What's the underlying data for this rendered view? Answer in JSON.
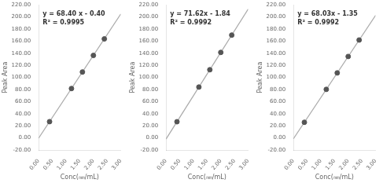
{
  "chart_data": [
    {
      "type": "scatter",
      "xlabel": "Conc(㎜/mL)",
      "ylabel": "Peak Area",
      "annotations": [
        "y = 68.40 x - 0.40",
        "R² = 0.9995"
      ],
      "series": [
        {
          "type": "scatter",
          "x": [
            0.4,
            1.2,
            1.6,
            2.0,
            2.4
          ],
          "values": [
            26.96,
            81.68,
            109.04,
            136.4,
            163.76
          ],
          "color": "#555555",
          "marker": "o"
        },
        {
          "type": "line",
          "x": [
            0.0,
            3.0
          ],
          "values": [
            -0.4,
            204.8
          ],
          "color": "#aaaaaa"
        }
      ],
      "xlim": [
        0,
        3
      ],
      "ylim": [
        -20,
        220
      ],
      "xticks": [
        {
          "value": 0,
          "label": "0.00"
        },
        {
          "value": 0.5,
          "label": "0.50"
        },
        {
          "value": 1,
          "label": "1.00"
        },
        {
          "value": 1.5,
          "label": "1.50"
        },
        {
          "value": 2,
          "label": "2.00"
        },
        {
          "value": 2.5,
          "label": "2.50"
        },
        {
          "value": 3,
          "label": "3.00"
        }
      ],
      "yticks": [
        {
          "value": -20,
          "label": "-20.00"
        },
        {
          "value": 0,
          "label": "0.00"
        },
        {
          "value": 20,
          "label": "20.00"
        },
        {
          "value": 40,
          "label": "40.00"
        },
        {
          "value": 60,
          "label": "60.00"
        },
        {
          "value": 80,
          "label": "80.00"
        },
        {
          "value": 100,
          "label": "100.00"
        },
        {
          "value": 120,
          "label": "120.00"
        },
        {
          "value": 140,
          "label": "140.00"
        },
        {
          "value": 160,
          "label": "160.00"
        },
        {
          "value": 180,
          "label": "180.00"
        },
        {
          "value": 200,
          "label": "200.00"
        },
        {
          "value": 220,
          "label": "220.00"
        }
      ],
      "grid": false
    },
    {
      "type": "scatter",
      "xlabel": "Conc(㎜/mL)",
      "ylabel": "Peak Area",
      "annotations": [
        "y = 71.62x - 1.84",
        "R² = 0.9992"
      ],
      "series": [
        {
          "type": "scatter",
          "x": [
            0.4,
            1.2,
            1.6,
            2.0,
            2.4
          ],
          "values": [
            26.808,
            84.104,
            112.752,
            141.4,
            170.048
          ],
          "color": "#555555",
          "marker": "o"
        },
        {
          "type": "line",
          "x": [
            0.0,
            3.0
          ],
          "values": [
            -1.84,
            213.02
          ],
          "color": "#aaaaaa"
        }
      ],
      "xlim": [
        0,
        3
      ],
      "ylim": [
        -20,
        220
      ],
      "xticks": [
        {
          "value": 0,
          "label": "0.00"
        },
        {
          "value": 0.5,
          "label": "0.50"
        },
        {
          "value": 1,
          "label": "1.00"
        },
        {
          "value": 1.5,
          "label": "1.50"
        },
        {
          "value": 2,
          "label": "2.00"
        },
        {
          "value": 2.5,
          "label": "2.50"
        },
        {
          "value": 3,
          "label": "3.00"
        }
      ],
      "yticks": [
        {
          "value": -20,
          "label": "-20.00"
        },
        {
          "value": 0,
          "label": "0.00"
        },
        {
          "value": 20,
          "label": "20.00"
        },
        {
          "value": 40,
          "label": "40.00"
        },
        {
          "value": 60,
          "label": "60.00"
        },
        {
          "value": 80,
          "label": "80.00"
        },
        {
          "value": 100,
          "label": "100.00"
        },
        {
          "value": 120,
          "label": "120.00"
        },
        {
          "value": 140,
          "label": "140.00"
        },
        {
          "value": 160,
          "label": "160.00"
        },
        {
          "value": 180,
          "label": "180.00"
        },
        {
          "value": 200,
          "label": "200.00"
        },
        {
          "value": 220,
          "label": "220.00"
        }
      ],
      "grid": false
    },
    {
      "type": "scatter",
      "xlabel": "Conc(㎜/mL)",
      "ylabel": "Peak Area",
      "annotations": [
        "y = 68.03x - 1.35",
        "R² = 0.9992"
      ],
      "series": [
        {
          "type": "scatter",
          "x": [
            0.4,
            1.2,
            1.6,
            2.0,
            2.4
          ],
          "values": [
            25.862,
            80.286,
            107.498,
            134.71,
            161.922
          ],
          "color": "#555555",
          "marker": "o"
        },
        {
          "type": "line",
          "x": [
            0.0,
            3.0
          ],
          "values": [
            -1.35,
            202.74
          ],
          "color": "#aaaaaa"
        }
      ],
      "xlim": [
        0,
        3
      ],
      "ylim": [
        -20,
        220
      ],
      "xticks": [
        {
          "value": 0,
          "label": "0.00"
        },
        {
          "value": 0.5,
          "label": "0.50"
        },
        {
          "value": 1,
          "label": "1.00"
        },
        {
          "value": 1.5,
          "label": "1.50"
        },
        {
          "value": 2,
          "label": "2.00"
        },
        {
          "value": 2.5,
          "label": "2.50"
        },
        {
          "value": 3,
          "label": "3.00"
        }
      ],
      "yticks": [
        {
          "value": -20,
          "label": "-20.00"
        },
        {
          "value": 0,
          "label": "0.00"
        },
        {
          "value": 20,
          "label": "20.00"
        },
        {
          "value": 40,
          "label": "40.00"
        },
        {
          "value": 60,
          "label": "60.00"
        },
        {
          "value": 80,
          "label": "80.00"
        },
        {
          "value": 100,
          "label": "100.00"
        },
        {
          "value": 120,
          "label": "120.00"
        },
        {
          "value": 140,
          "label": "140.00"
        },
        {
          "value": 160,
          "label": "160.00"
        },
        {
          "value": 180,
          "label": "180.00"
        },
        {
          "value": 200,
          "label": "200.00"
        },
        {
          "value": 220,
          "label": "220.00"
        }
      ],
      "grid": false
    }
  ]
}
